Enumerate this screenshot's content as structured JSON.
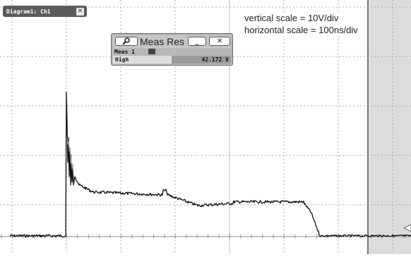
{
  "diagram_tab": {
    "label": "Diagram1: Ch1",
    "close_glyph": "✕"
  },
  "scale_note": {
    "vertical": "vertical scale = 10V/div",
    "horizontal": "horizontal scale = 100ns/div"
  },
  "meas_results": {
    "title": "Meas Res",
    "search_icon": "search-icon",
    "minimize_glyph": "_",
    "close_glyph": "✕",
    "meas_label": "Meas 1",
    "row_label": "High",
    "row_value": "42.172 V"
  },
  "colors": {
    "grid": "#a8a8a8",
    "trace": "#111111",
    "panel_shade": "#dcdcdc",
    "cursor_line": "#777777"
  }
}
